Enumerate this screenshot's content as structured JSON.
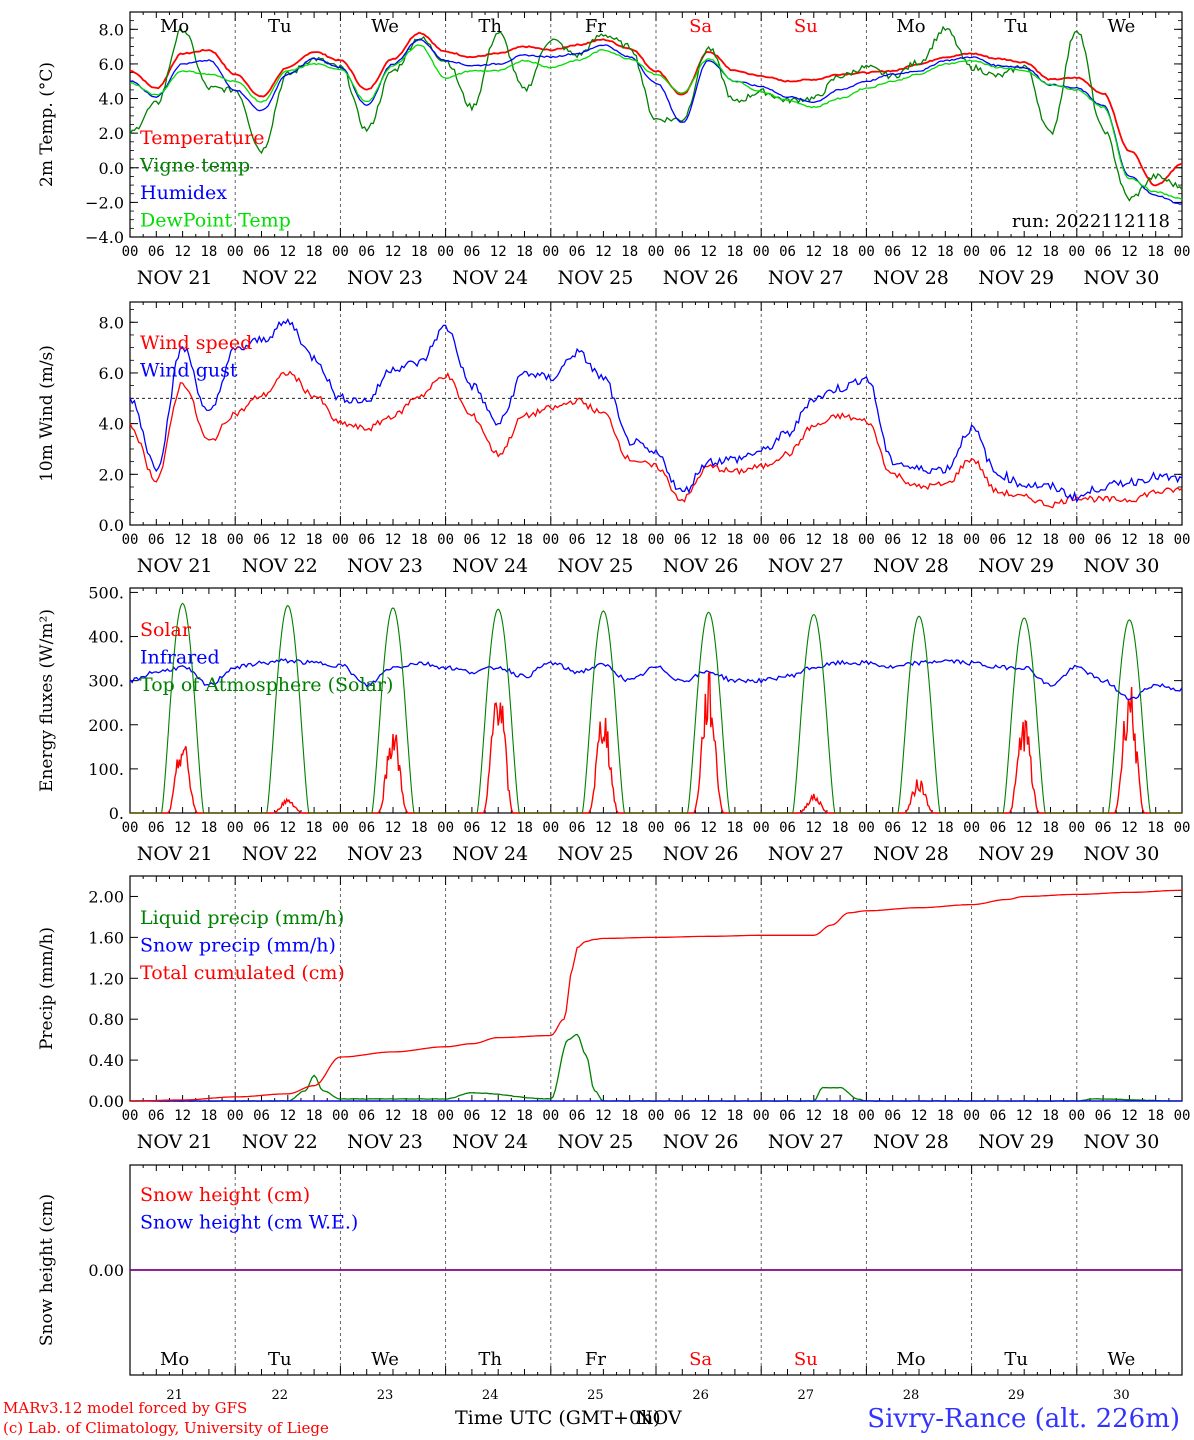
{
  "header": {
    "run_label": "run: 2022112118"
  },
  "footer": {
    "credit_line1": "MARv3.12 model forced by GFS",
    "credit_line2": "(c) Lab. of Climatology, University of Liege",
    "xaxis_label": "Time UTC (GMT+0h)",
    "xaxis_overlap": "NOV",
    "station": "Sivry-Rance (alt. 226m)"
  },
  "days": {
    "weekdays": [
      "Mo",
      "Tu",
      "We",
      "Th",
      "Fr",
      "Sa",
      "Su",
      "Mo",
      "Tu",
      "We"
    ],
    "weekend_flags": [
      false,
      false,
      false,
      false,
      false,
      true,
      true,
      false,
      false,
      false
    ],
    "date_labels": [
      "NOV 21",
      "NOV 22",
      "NOV 23",
      "NOV 24",
      "NOV 25",
      "NOV 26",
      "NOV 27",
      "NOV 28",
      "NOV 29",
      "NOV 30"
    ],
    "day_numbers": [
      "21",
      "22",
      "23",
      "24",
      "25",
      "26",
      "27",
      "28",
      "29",
      "30"
    ],
    "hour_ticks": [
      "00",
      "06",
      "12",
      "18"
    ],
    "final_tick": "00"
  },
  "colors": {
    "red": "#ff0000",
    "green": "#008000",
    "blue": "#0000ff",
    "lightgreen": "#00dd00",
    "purple": "#800080",
    "weekend": "#ff0000"
  },
  "chart_data": [
    {
      "type": "line",
      "id": "temp",
      "ylabel": "2m Temp. (°C)",
      "ylim": [
        -4,
        9
      ],
      "yticks": [
        -4,
        -2,
        0,
        2,
        4,
        6,
        8
      ],
      "ytick_labels": [
        "−4.0",
        "−2.0",
        "0.0",
        "2.0",
        "4.0",
        "6.0",
        "8.0"
      ],
      "ref_line": 0,
      "x_unit": "hours since NOV 21 00 UTC",
      "series": [
        {
          "name": "Temperature",
          "color": "#ff0000",
          "x": [
            0,
            6,
            12,
            18,
            24,
            30,
            36,
            42,
            48,
            54,
            60,
            66,
            72,
            78,
            84,
            90,
            96,
            102,
            108,
            114,
            120,
            126,
            132,
            138,
            144,
            150,
            156,
            162,
            168,
            174,
            180,
            186,
            192,
            198,
            204,
            210,
            216,
            222,
            228,
            234,
            240
          ],
          "y": [
            5.6,
            4.6,
            6.6,
            6.8,
            5.4,
            4.1,
            5.8,
            6.7,
            6.2,
            4.5,
            6.3,
            7.8,
            6.7,
            6.4,
            6.6,
            7.0,
            6.8,
            7.1,
            7.4,
            6.9,
            5.6,
            4.2,
            6.7,
            5.6,
            5.3,
            5.0,
            5.1,
            5.4,
            5.5,
            5.6,
            6.0,
            6.4,
            6.6,
            6.3,
            6.1,
            5.1,
            5.2,
            4.3,
            1.0,
            -1.0,
            0.2
          ]
        },
        {
          "name": "Vigne temp",
          "color": "#008000",
          "x": [
            0,
            6,
            12,
            18,
            24,
            30,
            36,
            42,
            48,
            54,
            60,
            66,
            72,
            78,
            84,
            90,
            96,
            102,
            108,
            114,
            120,
            126,
            132,
            138,
            144,
            150,
            156,
            162,
            168,
            174,
            180,
            186,
            192,
            198,
            204,
            210,
            216,
            222,
            228,
            234,
            240
          ],
          "y": [
            2.0,
            3.7,
            8.0,
            4.6,
            4.5,
            1.0,
            5.4,
            6.3,
            5.8,
            2.2,
            5.6,
            7.5,
            6.2,
            3.5,
            7.8,
            4.5,
            7.4,
            6.5,
            7.7,
            7.0,
            2.8,
            2.8,
            6.9,
            3.8,
            4.4,
            3.9,
            4.0,
            5.3,
            5.8,
            5.3,
            6.1,
            8.0,
            5.8,
            5.3,
            5.9,
            2.0,
            8.0,
            2.2,
            -1.8,
            -0.5,
            -1.1
          ]
        },
        {
          "name": "Humidex",
          "color": "#0000ff",
          "x": [
            0,
            6,
            12,
            18,
            24,
            30,
            36,
            42,
            48,
            54,
            60,
            66,
            72,
            78,
            84,
            90,
            96,
            102,
            108,
            114,
            120,
            126,
            132,
            138,
            144,
            150,
            156,
            162,
            168,
            174,
            180,
            186,
            192,
            198,
            204,
            210,
            216,
            222,
            228,
            234,
            240
          ],
          "y": [
            5.0,
            4.1,
            6.0,
            6.2,
            4.5,
            3.3,
            5.4,
            6.3,
            5.8,
            3.6,
            6.0,
            7.4,
            6.2,
            5.9,
            6.0,
            6.5,
            6.4,
            6.6,
            7.1,
            6.4,
            4.9,
            2.6,
            6.2,
            5.0,
            4.7,
            4.1,
            3.8,
            4.5,
            5.0,
            5.4,
            5.6,
            6.2,
            6.4,
            5.9,
            5.8,
            4.8,
            4.6,
            3.6,
            -0.5,
            -1.6,
            -2.1
          ]
        },
        {
          "name": "DewPoint Temp",
          "color": "#00dd00",
          "x": [
            0,
            6,
            12,
            18,
            24,
            30,
            36,
            42,
            48,
            54,
            60,
            66,
            72,
            78,
            84,
            90,
            96,
            102,
            108,
            114,
            120,
            126,
            132,
            138,
            144,
            150,
            156,
            162,
            168,
            174,
            180,
            186,
            192,
            198,
            204,
            210,
            216,
            222,
            228,
            234,
            240
          ],
          "y": [
            4.9,
            4.2,
            5.6,
            5.4,
            5.0,
            3.8,
            5.6,
            6.0,
            5.7,
            3.8,
            5.9,
            7.1,
            5.2,
            5.6,
            5.6,
            6.2,
            5.8,
            6.2,
            6.8,
            6.3,
            5.4,
            4.3,
            6.3,
            5.0,
            4.4,
            3.9,
            3.5,
            4.0,
            4.6,
            5.0,
            5.4,
            6.0,
            6.2,
            5.8,
            5.6,
            4.8,
            4.5,
            3.5,
            -0.6,
            -1.4,
            -1.8
          ]
        }
      ]
    },
    {
      "type": "line",
      "id": "wind",
      "ylabel": "10m Wind (m/s)",
      "ylim": [
        0,
        8.8
      ],
      "yticks": [
        0,
        2,
        4,
        6,
        8
      ],
      "ytick_labels": [
        "0.0",
        "2.0",
        "4.0",
        "6.0",
        "8.0"
      ],
      "ref_line": 5,
      "series": [
        {
          "name": "Wind speed",
          "color": "#ff0000",
          "x": [
            0,
            6,
            12,
            18,
            24,
            30,
            36,
            42,
            48,
            54,
            60,
            66,
            72,
            78,
            84,
            90,
            96,
            102,
            108,
            114,
            120,
            126,
            132,
            138,
            144,
            150,
            156,
            162,
            168,
            174,
            180,
            186,
            192,
            198,
            204,
            210,
            216,
            222,
            228,
            234,
            240
          ],
          "y": [
            3.9,
            1.8,
            5.6,
            3.3,
            4.4,
            5.1,
            6.0,
            5.1,
            4.0,
            3.8,
            4.3,
            5.1,
            5.9,
            4.3,
            2.8,
            4.3,
            4.6,
            4.9,
            4.4,
            2.6,
            2.3,
            1.0,
            2.3,
            2.1,
            2.3,
            2.8,
            3.9,
            4.3,
            4.1,
            2.0,
            1.5,
            1.6,
            2.6,
            1.3,
            1.1,
            0.8,
            1.1,
            1.0,
            1.0,
            1.3,
            1.4
          ]
        },
        {
          "name": "Wind gust",
          "color": "#0000ff",
          "x": [
            0,
            6,
            12,
            18,
            24,
            30,
            36,
            42,
            48,
            54,
            60,
            66,
            72,
            78,
            84,
            90,
            96,
            102,
            108,
            114,
            120,
            126,
            132,
            138,
            144,
            150,
            156,
            162,
            168,
            174,
            180,
            186,
            192,
            198,
            204,
            210,
            216,
            222,
            228,
            234,
            240
          ],
          "y": [
            5.0,
            2.3,
            7.0,
            4.4,
            6.9,
            7.3,
            8.0,
            6.6,
            5.0,
            4.9,
            6.2,
            6.4,
            7.8,
            5.5,
            4.0,
            6.0,
            5.8,
            6.8,
            5.8,
            3.3,
            2.8,
            1.3,
            2.5,
            2.6,
            2.9,
            3.6,
            5.0,
            5.4,
            5.8,
            2.5,
            2.2,
            2.2,
            3.8,
            2.0,
            1.6,
            1.5,
            1.1,
            1.5,
            1.7,
            1.9,
            1.8
          ]
        }
      ]
    },
    {
      "type": "line",
      "id": "flux",
      "ylabel": "Energy fluxes (W/m²)",
      "ylim": [
        0,
        510
      ],
      "yticks": [
        0,
        100,
        200,
        300,
        400,
        500
      ],
      "ytick_labels": [
        "0.",
        "100.",
        "200.",
        "300.",
        "400.",
        "500."
      ],
      "series": [
        {
          "name": "Solar",
          "color": "#ff0000",
          "day_peaks": [
            140,
            28,
            165,
            260,
            200,
            260,
            35,
            65,
            185,
            250
          ]
        },
        {
          "name": "Infrared",
          "color": "#0000ff",
          "x": [
            0,
            6,
            12,
            18,
            24,
            30,
            36,
            42,
            48,
            54,
            60,
            66,
            72,
            78,
            84,
            90,
            96,
            102,
            108,
            114,
            120,
            126,
            132,
            138,
            144,
            150,
            156,
            162,
            168,
            174,
            180,
            186,
            192,
            198,
            204,
            210,
            216,
            222,
            228,
            234,
            240
          ],
          "y": [
            300,
            320,
            330,
            290,
            330,
            340,
            345,
            340,
            335,
            290,
            330,
            340,
            330,
            320,
            330,
            310,
            340,
            320,
            335,
            300,
            330,
            300,
            320,
            300,
            300,
            310,
            330,
            340,
            340,
            330,
            340,
            345,
            340,
            330,
            330,
            290,
            330,
            300,
            260,
            290,
            280
          ]
        },
        {
          "name": "Top of Atmosphere (Solar)",
          "color": "#008000",
          "day_peaks": [
            475,
            470,
            465,
            462,
            458,
            455,
            450,
            446,
            442,
            438
          ]
        }
      ]
    },
    {
      "type": "line",
      "id": "precip",
      "ylabel": "Precip (mm/h)",
      "ylim": [
        0,
        2.2
      ],
      "yticks": [
        0,
        0.4,
        0.8,
        1.2,
        1.6,
        2.0
      ],
      "ytick_labels": [
        "0.00",
        "0.40",
        "0.80",
        "1.20",
        "1.60",
        "2.00"
      ],
      "series": [
        {
          "name": "Liquid precip (mm/h)",
          "color": "#008000",
          "x": [
            0,
            24,
            36,
            40,
            42,
            44,
            48,
            60,
            72,
            78,
            96,
            100,
            102,
            104,
            106,
            108,
            120,
            156,
            158,
            162,
            166,
            168,
            216,
            220,
            240
          ],
          "y": [
            0,
            0,
            0,
            0.1,
            0.25,
            0.1,
            0.02,
            0.02,
            0.02,
            0.08,
            0.02,
            0.6,
            0.65,
            0.45,
            0.1,
            0,
            0,
            0,
            0.13,
            0.13,
            0.02,
            0,
            0,
            0.02,
            0
          ]
        },
        {
          "name": "Snow precip (mm/h)",
          "color": "#0000ff",
          "x": [
            0,
            240
          ],
          "y": [
            0,
            0
          ]
        },
        {
          "name": "Total cumulated (cm)",
          "color": "#ff0000",
          "x": [
            0,
            12,
            24,
            36,
            42,
            48,
            60,
            72,
            78,
            84,
            96,
            99,
            101,
            102,
            104,
            106,
            108,
            120,
            132,
            144,
            156,
            160,
            164,
            168,
            180,
            192,
            200,
            204,
            216,
            228,
            240
          ],
          "y": [
            0,
            0.01,
            0.04,
            0.07,
            0.15,
            0.43,
            0.48,
            0.53,
            0.56,
            0.62,
            0.64,
            0.8,
            1.3,
            1.5,
            1.56,
            1.58,
            1.59,
            1.6,
            1.61,
            1.62,
            1.62,
            1.72,
            1.84,
            1.86,
            1.89,
            1.92,
            1.97,
            2.0,
            2.02,
            2.04,
            2.06
          ]
        }
      ]
    },
    {
      "type": "line",
      "id": "snow",
      "ylabel": "Snow height (cm)",
      "ylim": [
        -1,
        1
      ],
      "yticks": [
        0
      ],
      "ytick_labels": [
        "0.00"
      ],
      "series": [
        {
          "name": "Snow height (cm)",
          "color": "#ff0000",
          "x": [
            0,
            240
          ],
          "y": [
            0,
            0
          ]
        },
        {
          "name": "Snow height (cm W.E.)",
          "color": "#0000ff",
          "x": [
            0,
            240
          ],
          "y": [
            0,
            0
          ]
        }
      ]
    }
  ]
}
